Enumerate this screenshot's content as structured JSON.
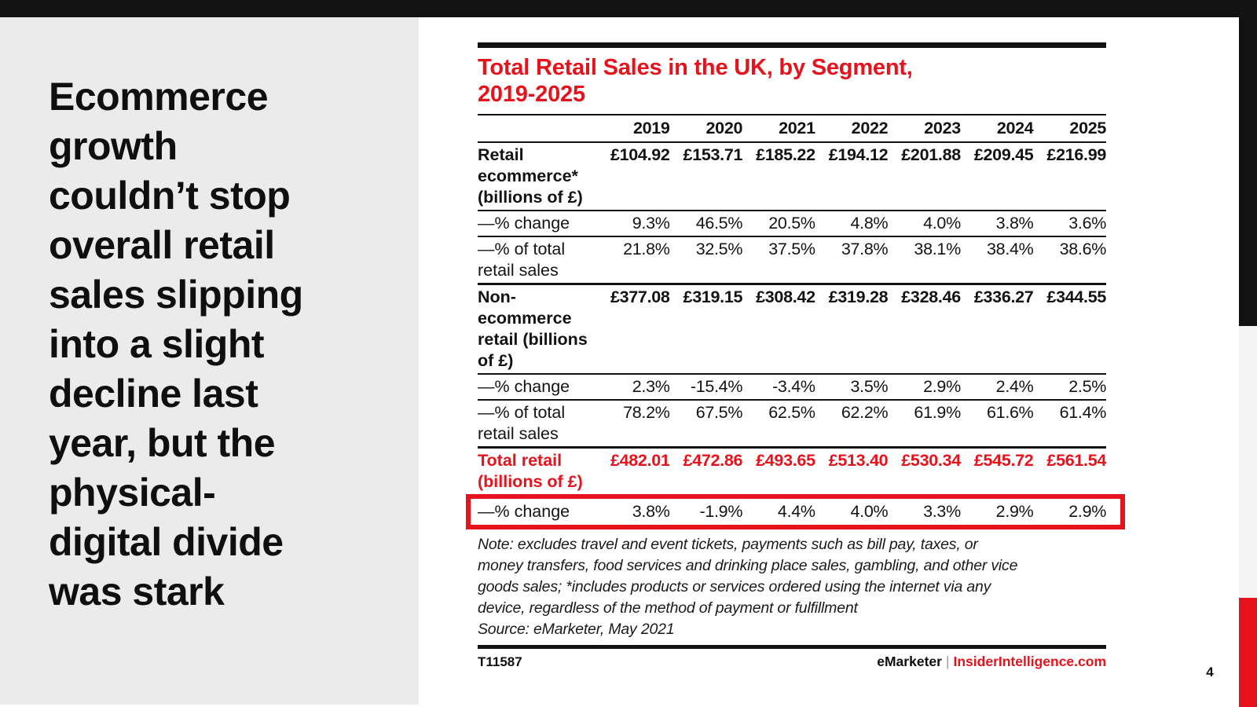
{
  "slide": {
    "headline": "Ecommerce\ngrowth\ncouldn’t stop\noverall retail\nsales slipping\ninto a slight\ndecline last\nyear, but the\nphysical-\ndigital divide\nwas stark",
    "page_number": "4"
  },
  "table": {
    "title": "Total Retail Sales in the UK, by Segment,\n2019-2025",
    "years": [
      "2019",
      "2020",
      "2021",
      "2022",
      "2023",
      "2024",
      "2025"
    ],
    "rows": [
      {
        "label": "Retail\necommerce*\n(billions of £)",
        "label_style": "bold",
        "value_style": "bold",
        "rule": "none",
        "values": [
          "£104.92",
          "£153.71",
          "£185.22",
          "£194.12",
          "£201.88",
          "£209.45",
          "£216.99"
        ]
      },
      {
        "label": "—% change",
        "label_style": "",
        "value_style": "",
        "rule": "thin",
        "values": [
          "9.3%",
          "46.5%",
          "20.5%",
          "4.8%",
          "4.0%",
          "3.8%",
          "3.6%"
        ]
      },
      {
        "label": "—% of total\nretail sales",
        "label_style": "",
        "value_style": "",
        "rule": "thin",
        "values": [
          "21.8%",
          "32.5%",
          "37.5%",
          "37.8%",
          "38.1%",
          "38.4%",
          "38.6%"
        ]
      },
      {
        "label": "Non-\necommerce\nretail (billions\nof £)",
        "label_style": "bold",
        "value_style": "bold",
        "rule": "thick",
        "values": [
          "£377.08",
          "£319.15",
          "£308.42",
          "£319.28",
          "£328.46",
          "£336.27",
          "£344.55"
        ]
      },
      {
        "label": "—% change",
        "label_style": "",
        "value_style": "",
        "rule": "thin",
        "values": [
          "2.3%",
          "-15.4%",
          "-3.4%",
          "3.5%",
          "2.9%",
          "2.4%",
          "2.5%"
        ]
      },
      {
        "label": "—% of total\nretail sales",
        "label_style": "",
        "value_style": "",
        "rule": "thin",
        "values": [
          "78.2%",
          "67.5%",
          "62.5%",
          "62.2%",
          "61.9%",
          "61.6%",
          "61.4%"
        ]
      },
      {
        "label": "Total retail\n(billions of £)",
        "label_style": "red",
        "value_style": "red",
        "rule": "thick",
        "values": [
          "£482.01",
          "£472.86",
          "£493.65",
          "£513.40",
          "£530.34",
          "£545.72",
          "£561.54"
        ]
      },
      {
        "label": "—% change",
        "label_style": "",
        "value_style": "",
        "rule": "none",
        "highlighted": true,
        "values": [
          "3.8%",
          "-1.9%",
          "4.4%",
          "4.0%",
          "3.3%",
          "2.9%",
          "2.9%"
        ]
      }
    ],
    "note": "Note: excludes travel and event tickets, payments such as bill pay, taxes, or\nmoney transfers, food services and drinking place sales, gambling, and other vice\ngoods sales; *includes products or services ordered using the internet via any\ndevice, regardless of the method of payment or fulfillment",
    "source": "Source: eMarketer, May 2021",
    "footer": {
      "id": "T11587",
      "brand": "eMarketer",
      "separator": "|",
      "site": "InsiderIntelligence.com"
    }
  },
  "colors": {
    "accent_red": "#e6121c",
    "bar_black": "#121212",
    "panel_gray": "#ebebeb",
    "strip_gray": "#f3f3f3"
  },
  "chart_data": {
    "type": "table",
    "title": "Total Retail Sales in the UK, by Segment, 2019-2025",
    "categories": [
      "2019",
      "2020",
      "2021",
      "2022",
      "2023",
      "2024",
      "2025"
    ],
    "series": [
      {
        "name": "Retail ecommerce (billions of £)",
        "values": [
          104.92,
          153.71,
          185.22,
          194.12,
          201.88,
          209.45,
          216.99
        ]
      },
      {
        "name": "Retail ecommerce % change",
        "values": [
          9.3,
          46.5,
          20.5,
          4.8,
          4.0,
          3.8,
          3.6
        ]
      },
      {
        "name": "Retail ecommerce % of total retail sales",
        "values": [
          21.8,
          32.5,
          37.5,
          37.8,
          38.1,
          38.4,
          38.6
        ]
      },
      {
        "name": "Non-ecommerce retail (billions of £)",
        "values": [
          377.08,
          319.15,
          308.42,
          319.28,
          328.46,
          336.27,
          344.55
        ]
      },
      {
        "name": "Non-ecommerce retail % change",
        "values": [
          2.3,
          -15.4,
          -3.4,
          3.5,
          2.9,
          2.4,
          2.5
        ]
      },
      {
        "name": "Non-ecommerce retail % of total retail sales",
        "values": [
          78.2,
          67.5,
          62.5,
          62.2,
          61.9,
          61.6,
          61.4
        ]
      },
      {
        "name": "Total retail (billions of £)",
        "values": [
          482.01,
          472.86,
          493.65,
          513.4,
          530.34,
          545.72,
          561.54
        ]
      },
      {
        "name": "Total retail % change",
        "values": [
          3.8,
          -1.9,
          4.4,
          4.0,
          3.3,
          2.9,
          2.9
        ]
      }
    ]
  }
}
